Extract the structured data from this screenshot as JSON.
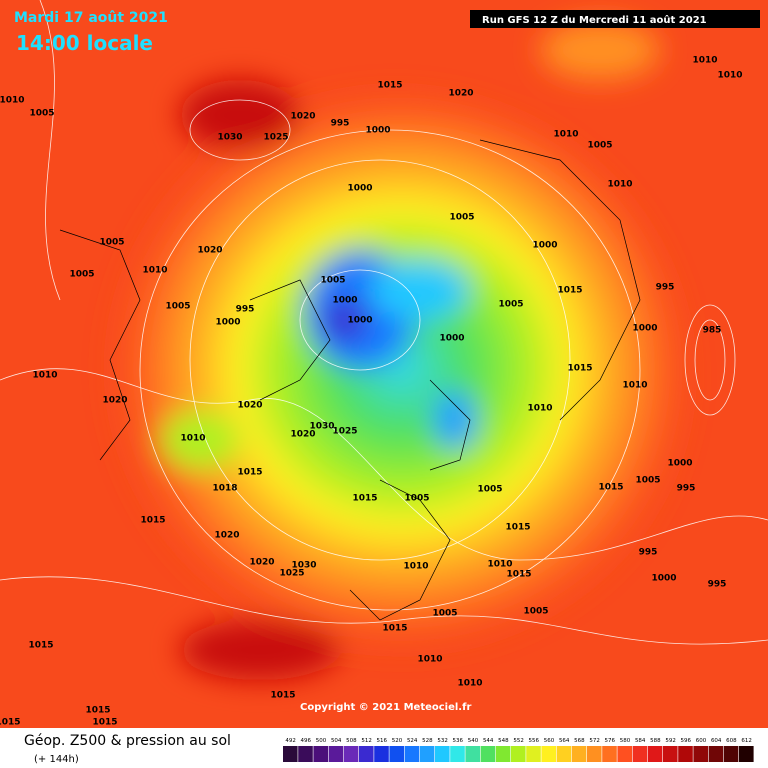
{
  "header": {
    "date": "Mardi 17 août 2021",
    "time": "14:00 locale",
    "run": "Run GFS 12 Z du Mercredi 11 août 2021"
  },
  "copyright": "Copyright © 2021 Meteociel.fr",
  "legend": {
    "title": "Géop. Z500 & pression au sol",
    "subtitle": "(+ 144h)",
    "scale": [
      "492",
      "496",
      "500",
      "504",
      "508",
      "512",
      "516",
      "520",
      "524",
      "528",
      "532",
      "536",
      "540",
      "544",
      "548",
      "552",
      "556",
      "560",
      "564",
      "568",
      "572",
      "576",
      "580",
      "584",
      "588",
      "592",
      "596",
      "600",
      "604",
      "608",
      "612"
    ]
  },
  "isobar_labels": [
    "1010",
    "1005",
    "1030",
    "1025",
    "1020",
    "995",
    "1000",
    "1015",
    "1020",
    "1010",
    "1010",
    "1010",
    "1005",
    "1010",
    "1005",
    "1020",
    "1005",
    "1010",
    "1000",
    "1005",
    "1000",
    "1005",
    "995",
    "1000",
    "1005",
    "1000",
    "1000",
    "1000",
    "1015",
    "1005",
    "995",
    "985",
    "1000",
    "1010",
    "1015",
    "1010",
    "1010",
    "1020",
    "1020",
    "1010",
    "1020",
    "1030",
    "1025",
    "1015",
    "1015",
    "1005",
    "1018",
    "1005",
    "1015",
    "1005",
    "1000",
    "995",
    "1015",
    "1020",
    "1015",
    "1010",
    "1020",
    "1025",
    "1030",
    "995",
    "1015",
    "1000",
    "995",
    "1010",
    "1005",
    "1005",
    "1015",
    "1015",
    "1010",
    "1010",
    "1015",
    "1015",
    "1015",
    "1015"
  ]
}
